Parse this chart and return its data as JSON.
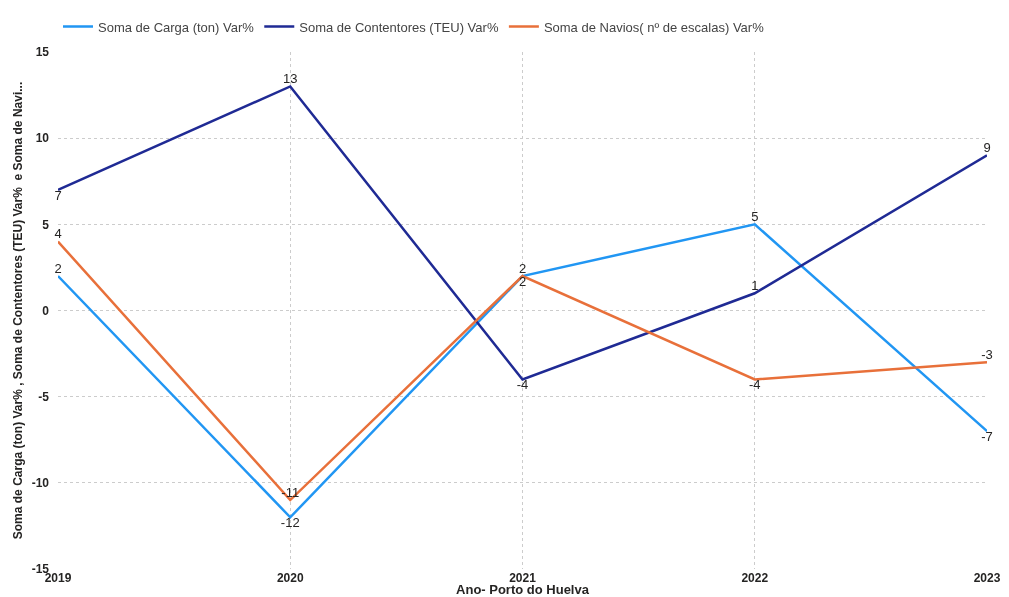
{
  "chart_data": {
    "type": "line",
    "xlabel": "Ano- Porto do Huelva",
    "ylabel": "Soma de Carga (ton) Var% , Soma de Contentores (TEU) Var%  e Soma de Navi...",
    "x": [
      2019,
      2020,
      2021,
      2022,
      2023
    ],
    "xlim": [
      2019,
      2023
    ],
    "xticks": [
      2019,
      2020,
      2021,
      2022,
      2023
    ],
    "ylim": [
      -15,
      15
    ],
    "yticks": [
      -15,
      -10,
      -5,
      0,
      5,
      10,
      15
    ],
    "series": [
      {
        "name": "Soma de Carga (ton) Var%",
        "color": "#2196f3",
        "values": [
          2,
          -12,
          2,
          5,
          -7
        ]
      },
      {
        "name": "Soma de Contentores (TEU) Var%",
        "color": "#1f2a94",
        "values": [
          7,
          13,
          -4,
          1,
          9
        ]
      },
      {
        "name": "Soma de Navios( nº de escalas) Var%",
        "color": "#e8703a",
        "values": [
          4,
          -11,
          2,
          -4,
          -3
        ]
      }
    ],
    "grid": true,
    "legend": "top left",
    "data_labels": true,
    "marker": "none",
    "line_style": "solid"
  }
}
